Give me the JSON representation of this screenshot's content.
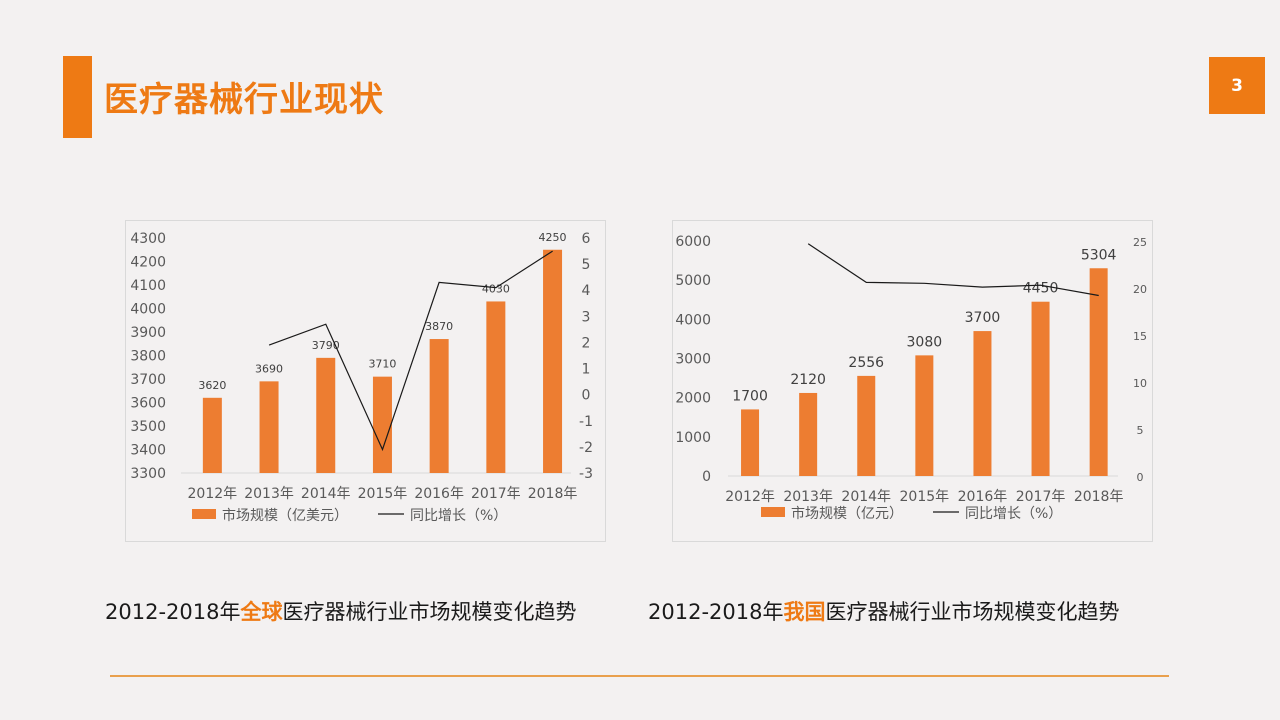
{
  "slide": {
    "title": "医疗器械行业现状",
    "page_number": "3"
  },
  "colors": {
    "accent": "#ee7a14",
    "bar": "#ed7d31",
    "line": "#1a1a1a",
    "axis_text": "#595959",
    "rule": "#e9a04d"
  },
  "captions": [
    {
      "prefix": "2012-2018年",
      "highlight": "全球",
      "suffix": "医疗器械行业市场规模变化趋势"
    },
    {
      "prefix": "2012-2018年",
      "highlight": "我国",
      "suffix": "医疗器械行业市场规模变化趋势"
    }
  ],
  "chart_data": [
    {
      "type": "bar",
      "title": "",
      "categories": [
        "2012年",
        "2013年",
        "2014年",
        "2015年",
        "2016年",
        "2017年",
        "2018年"
      ],
      "series": [
        {
          "name": "市场规模（亿美元）",
          "type": "bar",
          "axis": "left",
          "values": [
            3620,
            3690,
            3790,
            3710,
            3870,
            4030,
            4250
          ]
        },
        {
          "name": "同比增长（%）",
          "type": "line",
          "axis": "right",
          "values": [
            null,
            1.9,
            2.7,
            -2.1,
            4.3,
            4.1,
            5.5
          ]
        }
      ],
      "y_left": {
        "min": 3300,
        "max": 4300,
        "step": 100
      },
      "y_right": {
        "min": -3,
        "max": 6,
        "step": 1
      },
      "data_labels": true,
      "legend": "bottom",
      "grid": false
    },
    {
      "type": "bar",
      "title": "",
      "categories": [
        "2012年",
        "2013年",
        "2014年",
        "2015年",
        "2016年",
        "2017年",
        "2018年"
      ],
      "series": [
        {
          "name": "市场规模（亿元）",
          "type": "bar",
          "axis": "left",
          "values": [
            1700,
            2120,
            2556,
            3080,
            3700,
            4450,
            5304
          ]
        },
        {
          "name": "同比增长（%）",
          "type": "line",
          "axis": "right",
          "values": [
            null,
            24.7,
            20.6,
            20.5,
            20.1,
            20.3,
            19.2
          ]
        }
      ],
      "y_left": {
        "min": 0,
        "max": 6000,
        "step": 1000
      },
      "y_right": {
        "min": 0,
        "max": 25,
        "step": 5
      },
      "data_labels": true,
      "legend": "bottom",
      "grid": false
    }
  ]
}
